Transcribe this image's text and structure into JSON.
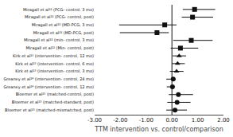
{
  "chart_data": {
    "type": "forest",
    "categories": [
      "Miragall et al²² (PCG- control, 3 mo)",
      "Miragall et al²² (PCG- control, post)",
      "Miragall et al²² (MD-PCG, 3 mo)",
      "Miragall et al²² (MD-PCG, post)",
      "Miragall et al²² (min- control, 3 mo)",
      "Miragall et al²² (Min- control, post)",
      "Kirk et al²³ (intervention- control, 12 mo)",
      "Kirk et al²³ (intervention- control, 6 mo)",
      "Kirk et al²³ (intervention- control, 3 mo)",
      "Greaney et al²⁴ (intervention- control, 24 mo)",
      "Greaney et al²⁴ (intervention- control, 12 mo)",
      "Bloemer et al²⁵ (matched-control, post)",
      "Bloemer et al²⁵ (matched-standard, post)",
      "Bloemer et al²⁵ (matched-mismatched, post)"
    ],
    "series": [
      {
        "marker": "square",
        "values": [
          0.88,
          0.8,
          -0.28,
          -0.58,
          0.75,
          0.33,
          null,
          null,
          null,
          null,
          null,
          null,
          null,
          null
        ]
      },
      {
        "marker": "triangle",
        "values": [
          null,
          null,
          null,
          null,
          null,
          null,
          0.28,
          0.22,
          0.18,
          null,
          null,
          null,
          null,
          null
        ]
      },
      {
        "marker": "circle",
        "values": [
          null,
          null,
          null,
          null,
          null,
          null,
          null,
          null,
          null,
          0.05,
          0.02,
          0.25,
          0.2,
          0.12
        ]
      }
    ],
    "ci_low": [
      0.42,
      0.38,
      -2.05,
      -2.02,
      0.05,
      -0.05,
      0.03,
      0.0,
      -0.08,
      -0.22,
      -0.2,
      -0.12,
      -0.18,
      -0.22
    ],
    "ci_high": [
      1.68,
      1.6,
      0.18,
      -0.12,
      1.58,
      1.02,
      0.55,
      0.5,
      0.45,
      0.15,
      0.12,
      0.82,
      0.72,
      0.58
    ],
    "reference_line": 0,
    "xlabel": "TTM intervention vs. control/comparison",
    "xlim": [
      -3,
      2
    ],
    "xticks": [
      {
        "value": -3,
        "label": "-3.00"
      },
      {
        "value": -2,
        "label": "-2.00"
      },
      {
        "value": -1,
        "label": "-1.00"
      },
      {
        "value": 0,
        "label": "0.00"
      },
      {
        "value": 1,
        "label": "1.00"
      },
      {
        "value": 2,
        "label": "2.00"
      }
    ],
    "color": "#111111",
    "grid": false
  }
}
